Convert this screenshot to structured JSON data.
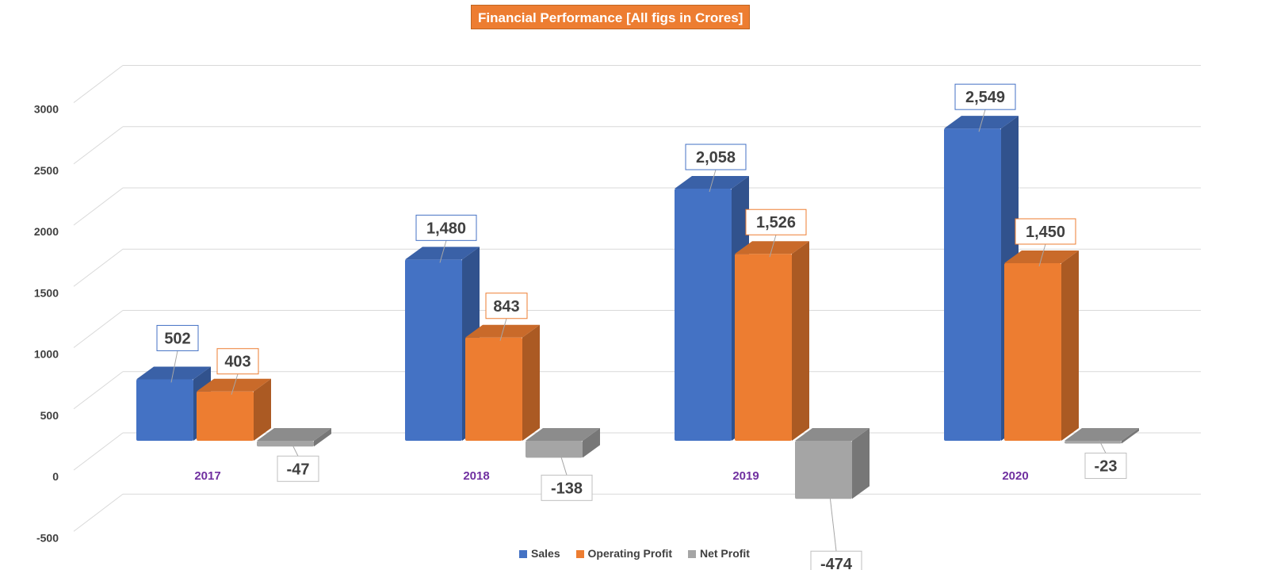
{
  "chart_data": {
    "type": "bar",
    "title": "Financial Performance [All figs in Crores]",
    "categories": [
      "2017",
      "2018",
      "2019",
      "2020"
    ],
    "series": [
      {
        "name": "Sales",
        "color": "#4472C4",
        "values": [
          502,
          1480,
          2058,
          2549
        ],
        "labels": [
          "502",
          "1,480",
          "2,058",
          "2,549"
        ]
      },
      {
        "name": "Operating Profit",
        "color": "#ED7D31",
        "values": [
          403,
          843,
          1526,
          1450
        ],
        "labels": [
          "403",
          "843",
          "1,526",
          "1,450"
        ]
      },
      {
        "name": "Net Profit",
        "color": "#A5A5A5",
        "values": [
          -47,
          -138,
          -474,
          -23
        ],
        "labels": [
          "-47",
          "-138",
          "-474",
          "-23"
        ]
      }
    ],
    "y_ticks": [
      "3000",
      "2500",
      "2000",
      "1500",
      "1000",
      "500",
      "0",
      "-500"
    ],
    "ylim": [
      -500,
      3000
    ],
    "xlabel": "",
    "ylabel": "",
    "legend_position": "bottom",
    "category_label_color": "#7030A0"
  }
}
